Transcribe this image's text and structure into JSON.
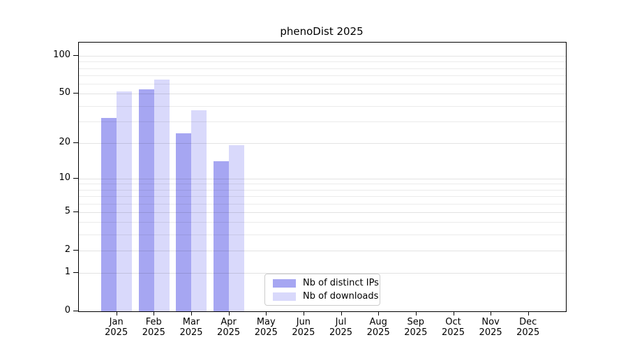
{
  "title": "phenoDist 2025",
  "chart_data": {
    "type": "bar",
    "title": "phenoDist 2025",
    "categories": [
      "Jan 2025",
      "Feb 2025",
      "Mar 2025",
      "Apr 2025",
      "May 2025",
      "Jun 2025",
      "Jul 2025",
      "Aug 2025",
      "Sep 2025",
      "Oct 2025",
      "Nov 2025",
      "Dec 2025"
    ],
    "series": [
      {
        "name": "Nb of distinct IPs",
        "color": "#a6a6f2",
        "values": [
          32,
          54,
          24,
          14,
          0,
          0,
          0,
          0,
          0,
          0,
          0,
          0
        ]
      },
      {
        "name": "Nb of downloads",
        "color": "#d9d9fb",
        "values": [
          52,
          65,
          37,
          19,
          0,
          0,
          0,
          0,
          0,
          0,
          0,
          0
        ]
      }
    ],
    "xlabel": "",
    "ylabel": "",
    "yscale": "log1p",
    "ylim": [
      0,
      127
    ],
    "yticks": [
      0,
      1,
      2,
      5,
      10,
      20,
      50,
      100
    ],
    "minor_gridlines": [
      3,
      4,
      6,
      7,
      8,
      9,
      30,
      40,
      60,
      70,
      80,
      90
    ],
    "grid": true,
    "legend_position": "inside-bottom-center",
    "colors": {
      "axis": "#000000",
      "background": "#ffffff"
    }
  }
}
